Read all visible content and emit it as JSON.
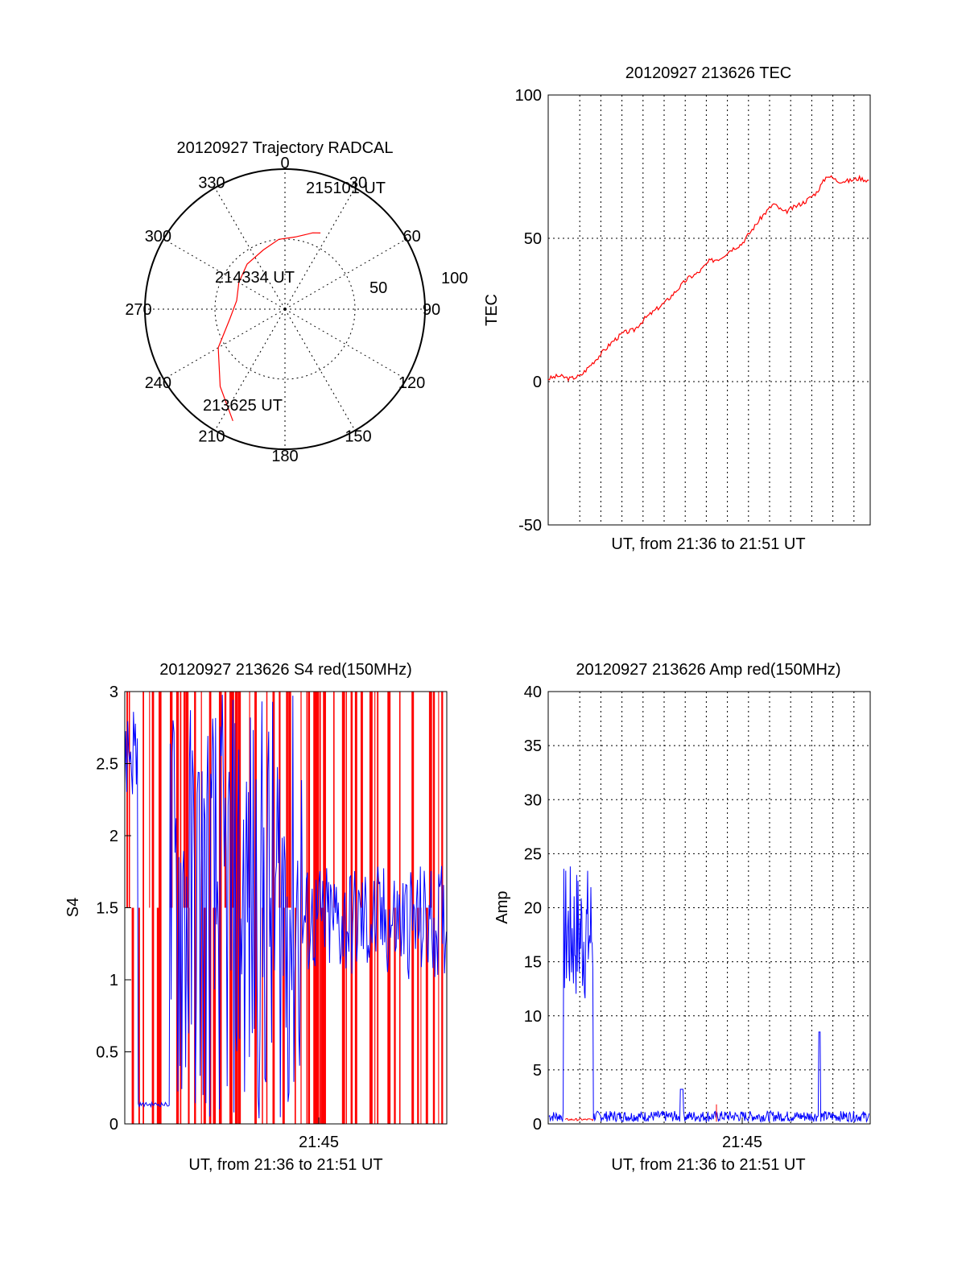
{
  "chart_data": [
    {
      "id": "trajectory",
      "type": "polar",
      "title": "20120927 Trajectory RADCAL",
      "azimuth_labels": [
        "0",
        "30",
        "60",
        "90",
        "120",
        "150",
        "180",
        "210",
        "240",
        "270",
        "300",
        "330"
      ],
      "radial_labels": [
        "50",
        "100"
      ],
      "grid": true,
      "series": [
        {
          "color": "#ff0000",
          "points": [
            [
              205,
              88
            ],
            [
              220,
              72
            ],
            [
              240,
              55
            ],
            [
              260,
              40
            ],
            [
              280,
              35
            ],
            [
              300,
              38
            ],
            [
              320,
              42
            ],
            [
              340,
              45
            ],
            [
              355,
              50
            ],
            [
              8,
              52
            ],
            [
              15,
              55
            ],
            [
              20,
              58
            ],
            [
              25,
              60
            ]
          ]
        }
      ],
      "annotations": [
        "213625 UT",
        "214334 UT",
        "215101 UT"
      ]
    },
    {
      "id": "tec",
      "type": "line",
      "title": "20120927 213626 TEC",
      "ylabel": "TEC",
      "xlabel": "UT, from 21:36 to 21:51 UT",
      "ylim": [
        -50,
        100
      ],
      "yticks": [
        "100",
        "50",
        "0",
        "-50"
      ],
      "grid": true,
      "series": [
        {
          "color": "#ff0000",
          "x": [
            0,
            0.5,
            1,
            1.5,
            2,
            2.5,
            3,
            3.5,
            4,
            4.5,
            5,
            5.5,
            6,
            6.5,
            7,
            7.5,
            8,
            8.5,
            9,
            9.5,
            10,
            10.5,
            11,
            11.5,
            12,
            12.5,
            13,
            13.5,
            14,
            14.5,
            15
          ],
          "y": [
            1,
            2,
            1,
            2,
            6,
            10,
            14,
            17,
            18,
            22,
            25,
            28,
            32,
            36,
            38,
            42,
            43,
            46,
            48,
            53,
            58,
            62,
            59,
            61,
            63,
            66,
            72,
            70,
            70,
            71,
            70
          ]
        }
      ]
    },
    {
      "id": "s4",
      "type": "line",
      "title": "20120927 213626 S4 red(150MHz)",
      "ylabel": "S4",
      "xlabel": "UT, from 21:36 to 21:51 UT",
      "xtick_label": "21:45",
      "ylim": [
        0,
        3
      ],
      "yticks": [
        "3",
        "2.5",
        "2",
        "1.5",
        "1",
        "0.5",
        "0"
      ],
      "grid": false,
      "series": [
        {
          "color": "#ff0000",
          "description_free": true
        },
        {
          "color": "#0000ff",
          "description_free": true
        }
      ]
    },
    {
      "id": "amp",
      "type": "line",
      "title": "20120927 213626 Amp red(150MHz)",
      "ylabel": "Amp",
      "xlabel": "UT, from 21:36 to 21:51 UT",
      "xtick_label": "21:45",
      "ylim": [
        0,
        40
      ],
      "yticks": [
        "40",
        "35",
        "30",
        "25",
        "20",
        "15",
        "10",
        "5",
        "0"
      ],
      "grid": true,
      "series": [
        {
          "color": "#ff0000"
        },
        {
          "color": "#0000ff"
        }
      ]
    }
  ]
}
